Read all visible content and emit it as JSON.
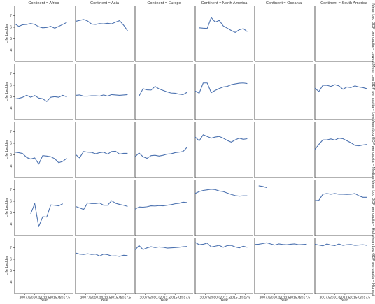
{
  "chart_data": {
    "type": "line",
    "layout": "facet-grid",
    "col_labels": [
      "Continent = Africa",
      "Continent = Asia",
      "Continent = Europe",
      "Continent = North America",
      "Continent = Oceania",
      "Continent = South America"
    ],
    "row_labels": [
      "Mean Log GDP per capita = Lowest",
      "Mean Log GDP per capita = Low",
      "Mean Log GDP per capita = Medium",
      "Mean Log GDP per capita = High",
      "Mean Log GDP per capita = Highest"
    ],
    "xlabel": "Year",
    "ylabel": "Life Ladder",
    "x_tick_labels": [
      "2007.5",
      "2010.0",
      "2012.5",
      "2015.0",
      "2017.5"
    ],
    "x_ticks": [
      2007.5,
      2010.0,
      2012.5,
      2015.0,
      2017.5
    ],
    "xlim": [
      2005.0,
      2019.5
    ],
    "y_ticks": [
      4,
      5,
      6,
      7
    ],
    "ylim": [
      3.0,
      7.9
    ],
    "grid": false,
    "line_color": "#4c72b0",
    "panels": [
      {
        "row": 0,
        "col": 0,
        "x": [
          2005,
          2006,
          2007,
          2008,
          2009,
          2010,
          2011,
          2012,
          2013,
          2014,
          2015,
          2016,
          2017,
          2018
        ],
        "y": [
          6.32,
          6.08,
          6.22,
          6.25,
          6.33,
          6.25,
          6.05,
          5.95,
          5.98,
          6.08,
          5.92,
          6.08,
          6.25,
          6.42
        ]
      },
      {
        "row": 0,
        "col": 1,
        "x": [
          2005,
          2006,
          2007,
          2008,
          2009,
          2010,
          2011,
          2012,
          2013,
          2014,
          2015,
          2016,
          2017,
          2018
        ],
        "y": [
          6.52,
          6.6,
          6.68,
          6.55,
          6.28,
          6.25,
          6.32,
          6.3,
          6.35,
          6.3,
          6.45,
          6.58,
          6.18,
          5.68
        ]
      },
      {
        "row": 0,
        "col": 3,
        "x": [
          2006,
          2007,
          2008,
          2009,
          2010,
          2011,
          2012,
          2013,
          2014,
          2015,
          2016,
          2017,
          2018
        ],
        "y": [
          5.95,
          5.92,
          5.9,
          6.85,
          6.45,
          6.6,
          6.12,
          5.92,
          5.72,
          5.55,
          5.78,
          5.88,
          5.62
        ]
      },
      {
        "row": 1,
        "col": 0,
        "x": [
          2005,
          2006,
          2007,
          2008,
          2009,
          2010,
          2011,
          2012,
          2013,
          2014,
          2015,
          2016,
          2017,
          2018
        ],
        "y": [
          4.8,
          4.85,
          4.95,
          5.12,
          4.95,
          5.1,
          4.88,
          4.82,
          4.58,
          4.95,
          5.0,
          4.95,
          5.12,
          4.98
        ]
      },
      {
        "row": 1,
        "col": 1,
        "x": [
          2005,
          2006,
          2007,
          2008,
          2009,
          2010,
          2011,
          2012,
          2013,
          2014,
          2015,
          2016,
          2017,
          2018
        ],
        "y": [
          5.12,
          5.15,
          5.05,
          5.05,
          5.08,
          5.08,
          5.05,
          5.15,
          5.05,
          5.18,
          5.15,
          5.12,
          5.15,
          5.18
        ]
      },
      {
        "row": 1,
        "col": 2,
        "x": [
          2006,
          2007,
          2008,
          2009,
          2010,
          2011,
          2012,
          2013,
          2014,
          2015,
          2016,
          2017,
          2018
        ],
        "y": [
          5.05,
          5.7,
          5.6,
          5.58,
          5.9,
          5.68,
          5.55,
          5.42,
          5.32,
          5.3,
          5.22,
          5.18,
          5.38
        ]
      },
      {
        "row": 1,
        "col": 3,
        "x": [
          2005,
          2006,
          2007,
          2008,
          2009,
          2010,
          2011,
          2012,
          2013,
          2014,
          2015,
          2016,
          2017,
          2018
        ],
        "y": [
          5.5,
          5.3,
          6.2,
          6.2,
          5.35,
          5.55,
          5.72,
          5.85,
          5.9,
          6.05,
          6.12,
          6.18,
          6.2,
          6.15
        ]
      },
      {
        "row": 1,
        "col": 5,
        "x": [
          2005,
          2006,
          2007,
          2008,
          2009,
          2010,
          2011,
          2012,
          2013,
          2014,
          2015,
          2016,
          2017,
          2018
        ],
        "y": [
          5.75,
          5.45,
          6.0,
          6.0,
          5.9,
          6.05,
          5.95,
          5.65,
          5.85,
          5.8,
          5.95,
          5.85,
          5.8,
          5.7
        ]
      },
      {
        "row": 2,
        "col": 0,
        "x": [
          2005,
          2006,
          2007,
          2008,
          2009,
          2010,
          2011,
          2012,
          2013,
          2014,
          2015,
          2016,
          2017,
          2018
        ],
        "y": [
          5.22,
          5.18,
          5.1,
          4.75,
          4.62,
          4.72,
          4.18,
          4.92,
          4.88,
          4.82,
          4.65,
          4.3,
          4.42,
          4.68
        ]
      },
      {
        "row": 2,
        "col": 1,
        "x": [
          2005,
          2006,
          2007,
          2008,
          2009,
          2010,
          2011,
          2012,
          2013,
          2014,
          2015,
          2016,
          2017,
          2018
        ],
        "y": [
          5.02,
          4.72,
          5.28,
          5.22,
          5.2,
          5.08,
          5.18,
          5.22,
          5.05,
          5.28,
          5.3,
          5.05,
          5.12,
          5.12
        ]
      },
      {
        "row": 2,
        "col": 2,
        "x": [
          2005,
          2006,
          2007,
          2008,
          2009,
          2010,
          2011,
          2012,
          2013,
          2014,
          2015,
          2016,
          2017,
          2018
        ],
        "y": [
          4.82,
          5.15,
          4.82,
          4.68,
          4.92,
          4.95,
          4.88,
          4.95,
          5.05,
          5.08,
          5.18,
          5.22,
          5.28,
          5.65
        ]
      },
      {
        "row": 2,
        "col": 3,
        "x": [
          2005,
          2006,
          2007,
          2008,
          2009,
          2010,
          2011,
          2012,
          2013,
          2014,
          2015,
          2016,
          2017,
          2018
        ],
        "y": [
          6.55,
          6.22,
          6.75,
          6.6,
          6.45,
          6.55,
          6.6,
          6.45,
          6.25,
          6.1,
          6.3,
          6.45,
          6.35,
          6.4
        ]
      },
      {
        "row": 2,
        "col": 5,
        "x": [
          2005,
          2006,
          2007,
          2008,
          2009,
          2010,
          2011,
          2012,
          2013,
          2014,
          2015,
          2016,
          2017,
          2018
        ],
        "y": [
          5.45,
          5.9,
          6.3,
          6.3,
          6.38,
          6.28,
          6.45,
          6.4,
          6.22,
          6.05,
          5.82,
          5.78,
          5.85,
          5.9
        ]
      },
      {
        "row": 3,
        "col": 0,
        "x": [
          2009,
          2010,
          2011,
          2012,
          2013,
          2014,
          2015,
          2016,
          2017
        ],
        "y": [
          4.9,
          5.8,
          3.78,
          4.65,
          4.62,
          5.68,
          5.65,
          5.6,
          5.78
        ]
      },
      {
        "row": 3,
        "col": 1,
        "x": [
          2005,
          2006,
          2007,
          2008,
          2009,
          2010,
          2011,
          2012,
          2013,
          2014,
          2015,
          2016,
          2017,
          2018
        ],
        "y": [
          5.55,
          5.42,
          5.28,
          5.85,
          5.8,
          5.8,
          5.85,
          5.65,
          5.65,
          6.05,
          5.82,
          5.72,
          5.65,
          5.55
        ]
      },
      {
        "row": 3,
        "col": 2,
        "x": [
          2005,
          2006,
          2007,
          2008,
          2009,
          2010,
          2011,
          2012,
          2013,
          2014,
          2015,
          2016,
          2017,
          2018
        ],
        "y": [
          5.3,
          5.5,
          5.48,
          5.52,
          5.6,
          5.58,
          5.62,
          5.6,
          5.65,
          5.7,
          5.78,
          5.82,
          5.92,
          5.88
        ]
      },
      {
        "row": 3,
        "col": 3,
        "x": [
          2005,
          2006,
          2007,
          2008,
          2009,
          2010,
          2011,
          2012,
          2013,
          2014,
          2015,
          2016,
          2017,
          2018
        ],
        "y": [
          6.68,
          6.85,
          6.95,
          7.0,
          7.05,
          7.02,
          6.9,
          6.85,
          6.72,
          6.6,
          6.5,
          6.45,
          6.48,
          6.48
        ]
      },
      {
        "row": 3,
        "col": 4,
        "x": [
          2006,
          2007,
          2008
        ],
        "y": [
          7.35,
          7.3,
          7.2
        ]
      },
      {
        "row": 3,
        "col": 5,
        "x": [
          2005,
          2006,
          2007,
          2008,
          2009,
          2010,
          2011,
          2012,
          2013,
          2014,
          2015,
          2016,
          2017,
          2018
        ],
        "y": [
          6.05,
          6.08,
          6.62,
          6.68,
          6.62,
          6.68,
          6.62,
          6.62,
          6.6,
          6.62,
          6.68,
          6.48,
          6.35,
          6.35
        ]
      },
      {
        "row": 4,
        "col": 1,
        "x": [
          2005,
          2006,
          2007,
          2008,
          2009,
          2010,
          2011,
          2012,
          2013,
          2014,
          2015,
          2016,
          2017,
          2018
        ],
        "y": [
          6.55,
          6.45,
          6.42,
          6.48,
          6.42,
          6.45,
          6.28,
          6.45,
          6.4,
          6.28,
          6.3,
          6.25,
          6.35,
          6.32
        ]
      },
      {
        "row": 4,
        "col": 2,
        "x": [
          2005,
          2006,
          2007,
          2008,
          2009,
          2010,
          2011,
          2012,
          2013,
          2014,
          2015,
          2016,
          2017,
          2018
        ],
        "y": [
          6.82,
          7.2,
          6.85,
          7.0,
          7.1,
          7.02,
          7.08,
          7.05,
          6.98,
          7.0,
          7.02,
          7.05,
          7.1,
          7.12
        ]
      },
      {
        "row": 4,
        "col": 3,
        "x": [
          2005,
          2006,
          2007,
          2008,
          2009,
          2010,
          2011,
          2012,
          2013,
          2014,
          2015,
          2016,
          2017,
          2018
        ],
        "y": [
          7.48,
          7.28,
          7.32,
          7.42,
          7.08,
          7.15,
          7.22,
          7.05,
          7.2,
          7.22,
          7.08,
          7.0,
          7.15,
          7.05
        ]
      },
      {
        "row": 4,
        "col": 4,
        "x": [
          2005,
          2006,
          2007,
          2008,
          2009,
          2010,
          2011,
          2012,
          2013,
          2014,
          2015,
          2016,
          2017,
          2018
        ],
        "y": [
          7.3,
          7.32,
          7.38,
          7.45,
          7.35,
          7.25,
          7.35,
          7.3,
          7.28,
          7.32,
          7.35,
          7.28,
          7.3,
          7.32
        ]
      },
      {
        "row": 4,
        "col": 5,
        "x": [
          2005,
          2006,
          2007,
          2008,
          2009,
          2010,
          2011,
          2012,
          2013,
          2014,
          2015,
          2016,
          2017,
          2018
        ],
        "y": [
          7.32,
          7.25,
          7.18,
          7.35,
          7.25,
          7.2,
          7.35,
          7.22,
          7.28,
          7.3,
          7.22,
          7.25,
          7.28,
          7.22
        ]
      }
    ]
  }
}
